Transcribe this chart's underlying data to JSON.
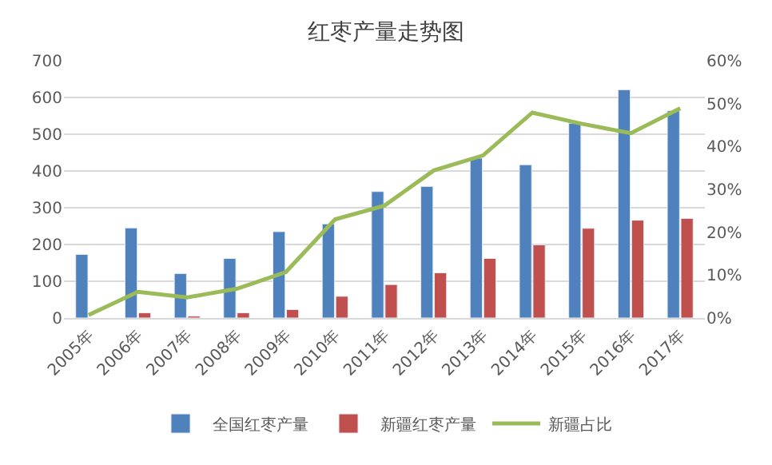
{
  "chart_data": {
    "type": "bar",
    "title": "红枣产量走势图",
    "categories": [
      "2005年",
      "2006年",
      "2007年",
      "2008年",
      "2009年",
      "2010年",
      "2011年",
      "2012年",
      "2013年",
      "2014年",
      "2015年",
      "2016年",
      "2017年"
    ],
    "series": [
      {
        "name": "全国红枣产量",
        "color": "#4f81bd",
        "values": [
          173,
          245,
          121,
          162,
          235,
          256,
          344,
          358,
          435,
          417,
          530,
          621,
          564
        ]
      },
      {
        "name": "新疆红枣产量",
        "color": "#c0504d",
        "values": [
          null,
          14,
          5,
          14,
          23,
          59,
          91,
          123,
          162,
          199,
          244,
          266,
          271
        ]
      },
      {
        "name": "新疆占比",
        "type": "line",
        "axis": "y2",
        "color": "#9bbb59",
        "values": [
          0.7,
          6.1,
          4.8,
          6.8,
          10.7,
          23,
          26.2,
          34.4,
          37.9,
          47.9,
          45.3,
          43.1,
          48.9
        ]
      }
    ],
    "ylim": [
      0,
      700
    ],
    "yticks": [
      0,
      100,
      200,
      300,
      400,
      500,
      600,
      700
    ],
    "y2lim": [
      0,
      60
    ],
    "y2ticks": [
      {
        "value": 0,
        "label": "0%"
      },
      {
        "value": 10,
        "label": "10%"
      },
      {
        "value": 20,
        "label": "20%"
      },
      {
        "value": 30,
        "label": "30%"
      },
      {
        "value": 40,
        "label": "40%"
      },
      {
        "value": 50,
        "label": "50%"
      },
      {
        "value": 60,
        "label": "60%"
      }
    ],
    "grid": "y",
    "legend": "bottom",
    "marker": "none",
    "line_style": "solid"
  }
}
